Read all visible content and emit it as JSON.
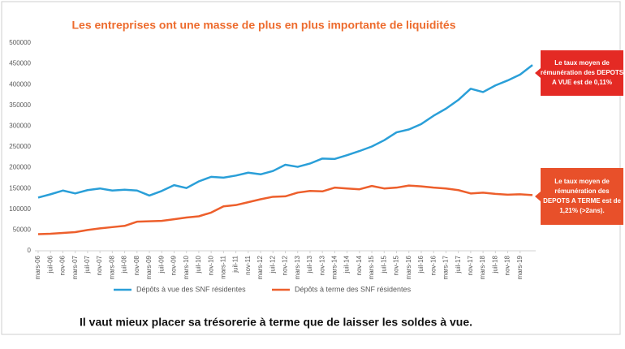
{
  "chart_data": {
    "type": "line",
    "title": "Les entreprises ont une masse de plus en plus importante de liquidités",
    "categories": [
      "mars-06",
      "juil-06",
      "nov-06",
      "mars-07",
      "juil-07",
      "nov-07",
      "mars-08",
      "juil-08",
      "nov-08",
      "mars-09",
      "juil-09",
      "nov-09",
      "mars-10",
      "juil-10",
      "nov-10",
      "mars-11",
      "juil-11",
      "nov-11",
      "mars-12",
      "juil-12",
      "nov-12",
      "mars-13",
      "juil-13",
      "nov-13",
      "mars-14",
      "juil-14",
      "nov-14",
      "mars-15",
      "juil-15",
      "nov-15",
      "mars-16",
      "juil-16",
      "nov-16",
      "mars-17",
      "juil-17",
      "nov-17",
      "mars-18",
      "juil-18",
      "nov-18",
      "mars-19",
      null
    ],
    "series": [
      {
        "name": "Dépôts à vue des SNF résidentes",
        "color": "#2a9fd8",
        "values": [
          128000,
          136000,
          145000,
          138000,
          146000,
          150000,
          145000,
          147000,
          145000,
          133000,
          144000,
          158000,
          151000,
          167000,
          178000,
          176000,
          181000,
          188000,
          184000,
          192000,
          207000,
          202000,
          210000,
          222000,
          221000,
          230000,
          240000,
          251000,
          266000,
          285000,
          292000,
          305000,
          325000,
          342000,
          363000,
          390000,
          382000,
          398000,
          410000,
          424000,
          447000
        ]
      },
      {
        "name": "Dépôts à terme des SNF résidentes",
        "color": "#ed5f2c",
        "values": [
          40000,
          41000,
          43000,
          45000,
          50000,
          54000,
          57000,
          60000,
          70000,
          71000,
          72000,
          76000,
          80000,
          83000,
          92000,
          107000,
          110000,
          117000,
          124000,
          130000,
          131000,
          140000,
          144000,
          143000,
          152000,
          150000,
          148000,
          156000,
          150000,
          152000,
          157000,
          155000,
          152000,
          150000,
          146000,
          138000,
          140000,
          137000,
          135000,
          136000,
          134000
        ]
      }
    ],
    "ylim": [
      0,
      500000
    ],
    "yticks": [
      0,
      50000,
      100000,
      150000,
      200000,
      250000,
      300000,
      350000,
      400000,
      450000,
      500000
    ],
    "grid": false,
    "legend": "bottom",
    "annotations": [
      {
        "lines": [
          "Le taux moyen de",
          "rémunération des DEPOTS",
          "A VUE est de 0,11%"
        ],
        "color": "#e42a24"
      },
      {
        "lines": [
          "Le taux moyen de",
          "rémunération des",
          "DEPOTS A TERME est de",
          "1,21% (>2ans)."
        ],
        "color": "#e8502a"
      }
    ],
    "footer": "Il vaut mieux placer sa trésorerie à terme que de laisser les soldes à vue."
  }
}
